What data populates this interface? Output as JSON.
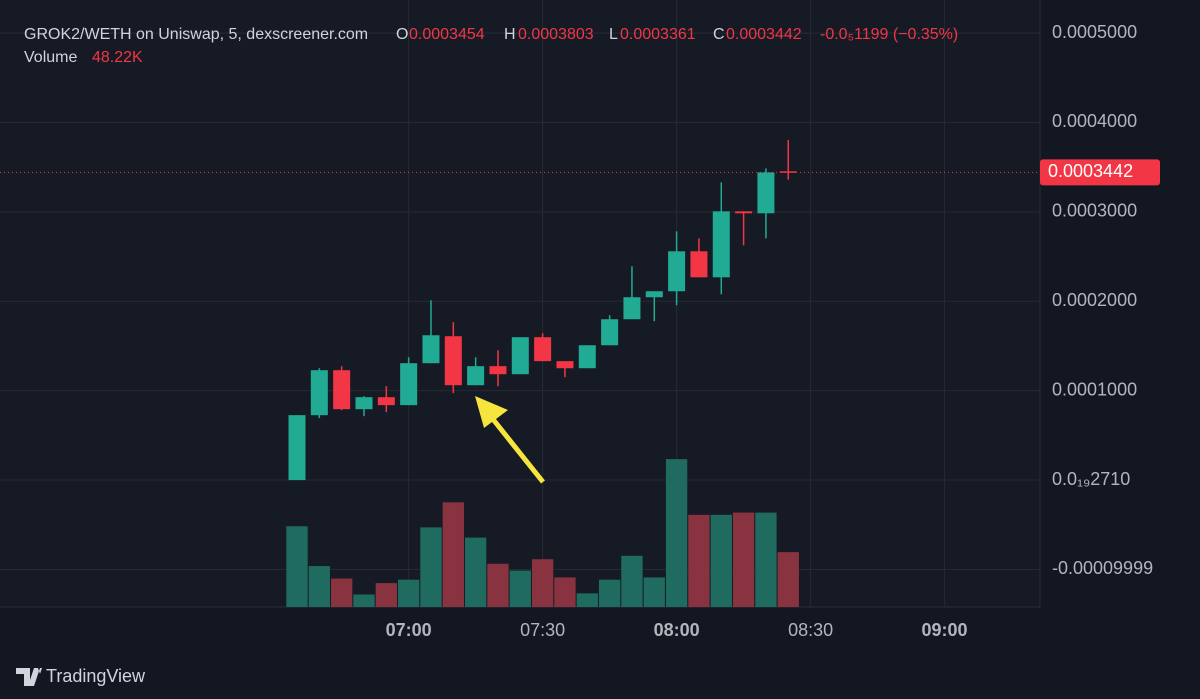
{
  "chart_data": {
    "type": "candlestick",
    "header": {
      "symbol": "GROK2/WETH on Uniswap, 5, dexscreener.com",
      "o": "O",
      "h": "H",
      "l": "L",
      "c": "C",
      "change": "-0.0₅1199 (−0.35%)",
      "volume_label": "Volume",
      "volume_value": "48.22K"
    },
    "categories": [
      null,
      null,
      null,
      null,
      null,
      "07:00",
      null,
      null,
      null,
      null,
      null,
      "07:30",
      null,
      null,
      null,
      null,
      null,
      "08:00",
      null,
      null,
      null,
      null,
      null,
      "08:30",
      null,
      null,
      null,
      null,
      null,
      "09:00"
    ],
    "open": [
      0.0,
      7.26e-05,
      0.0001229,
      7.93e-05,
      9.27e-05,
      8.38e-05,
      0.0001307,
      0.0001609,
      0.0001061,
      0.0001274,
      0.0001184,
      0.0001598,
      0.000133,
      0.0001251,
      0.0001508,
      0.0001799,
      0.0002045,
      0.0002112,
      0.0002559,
      0.0002268,
      0.0003006,
      0.0002984,
      0.0003454,
      null,
      null,
      null,
      null,
      null,
      null,
      null
    ],
    "high": [
      7.26e-05,
      0.0001251,
      0.0001274,
      9.39e-05,
      0.000105,
      0.0001374,
      0.0002011,
      0.0001765,
      0.0001374,
      0.0001452,
      0.0001598,
      0.0001642,
      0.000133,
      0.0001508,
      0.0001844,
      0.0002391,
      0.0002112,
      0.0002782,
      0.0002704,
      0.000333,
      0.0003006,
      0.0003486,
      0.0003803,
      null,
      null,
      null,
      null,
      null,
      null,
      null
    ],
    "low": [
      0.0,
      6.93e-05,
      7.82e-05,
      7.15e-05,
      7.6e-05,
      8.38e-05,
      0.0001307,
      9.72e-05,
      0.0001061,
      0.000105,
      0.0001184,
      0.000133,
      0.0001151,
      0.0001251,
      0.0001508,
      0.0001799,
      0.0001777,
      0.0001955,
      0.0002268,
      0.0002078,
      0.0002626,
      0.0002704,
      0.0003361,
      null,
      null,
      null,
      null,
      null,
      null,
      null
    ],
    "close": [
      7.26e-05,
      0.0001229,
      7.93e-05,
      9.27e-05,
      8.38e-05,
      0.0001307,
      0.000162,
      0.0001061,
      0.0001274,
      0.0001184,
      0.0001598,
      0.000133,
      0.0001251,
      0.0001508,
      0.0001799,
      0.0002045,
      0.0002112,
      0.0002559,
      0.0002268,
      0.0003006,
      0.0002984,
      0.0003441,
      0.0003442,
      null,
      null,
      null,
      null,
      null,
      null,
      null
    ],
    "volume": [
      71,
      36,
      25,
      11,
      21,
      24,
      70,
      92,
      61,
      38,
      32,
      42,
      26,
      12,
      24,
      45,
      26,
      130,
      81,
      81,
      83,
      83,
      48.22,
      null,
      null,
      null,
      null,
      null,
      null,
      null
    ],
    "volume_ylim": [
      0,
      160
    ],
    "up_color": "#22ab94",
    "down_color": "#f23645",
    "volume_up_color": "#1f6b5f",
    "volume_down_color": "#8a3340",
    "ylim": [
      -0.000142,
      0.000537
    ],
    "yticks": [
      {
        "value": 0.0005,
        "label": "0.0005000"
      },
      {
        "value": 0.0004,
        "label": "0.0004000"
      },
      {
        "value": 0.0003,
        "label": "0.0003000"
      },
      {
        "value": 0.0002,
        "label": "0.0002000"
      },
      {
        "value": 0.0001,
        "label": "0.0001000"
      },
      {
        "value": 2.71e-20,
        "label": "0.0₁₉2710"
      },
      {
        "value": -9.999e-05,
        "label": "-0.00009999"
      }
    ],
    "grid": true,
    "branding": "TradingView"
  }
}
